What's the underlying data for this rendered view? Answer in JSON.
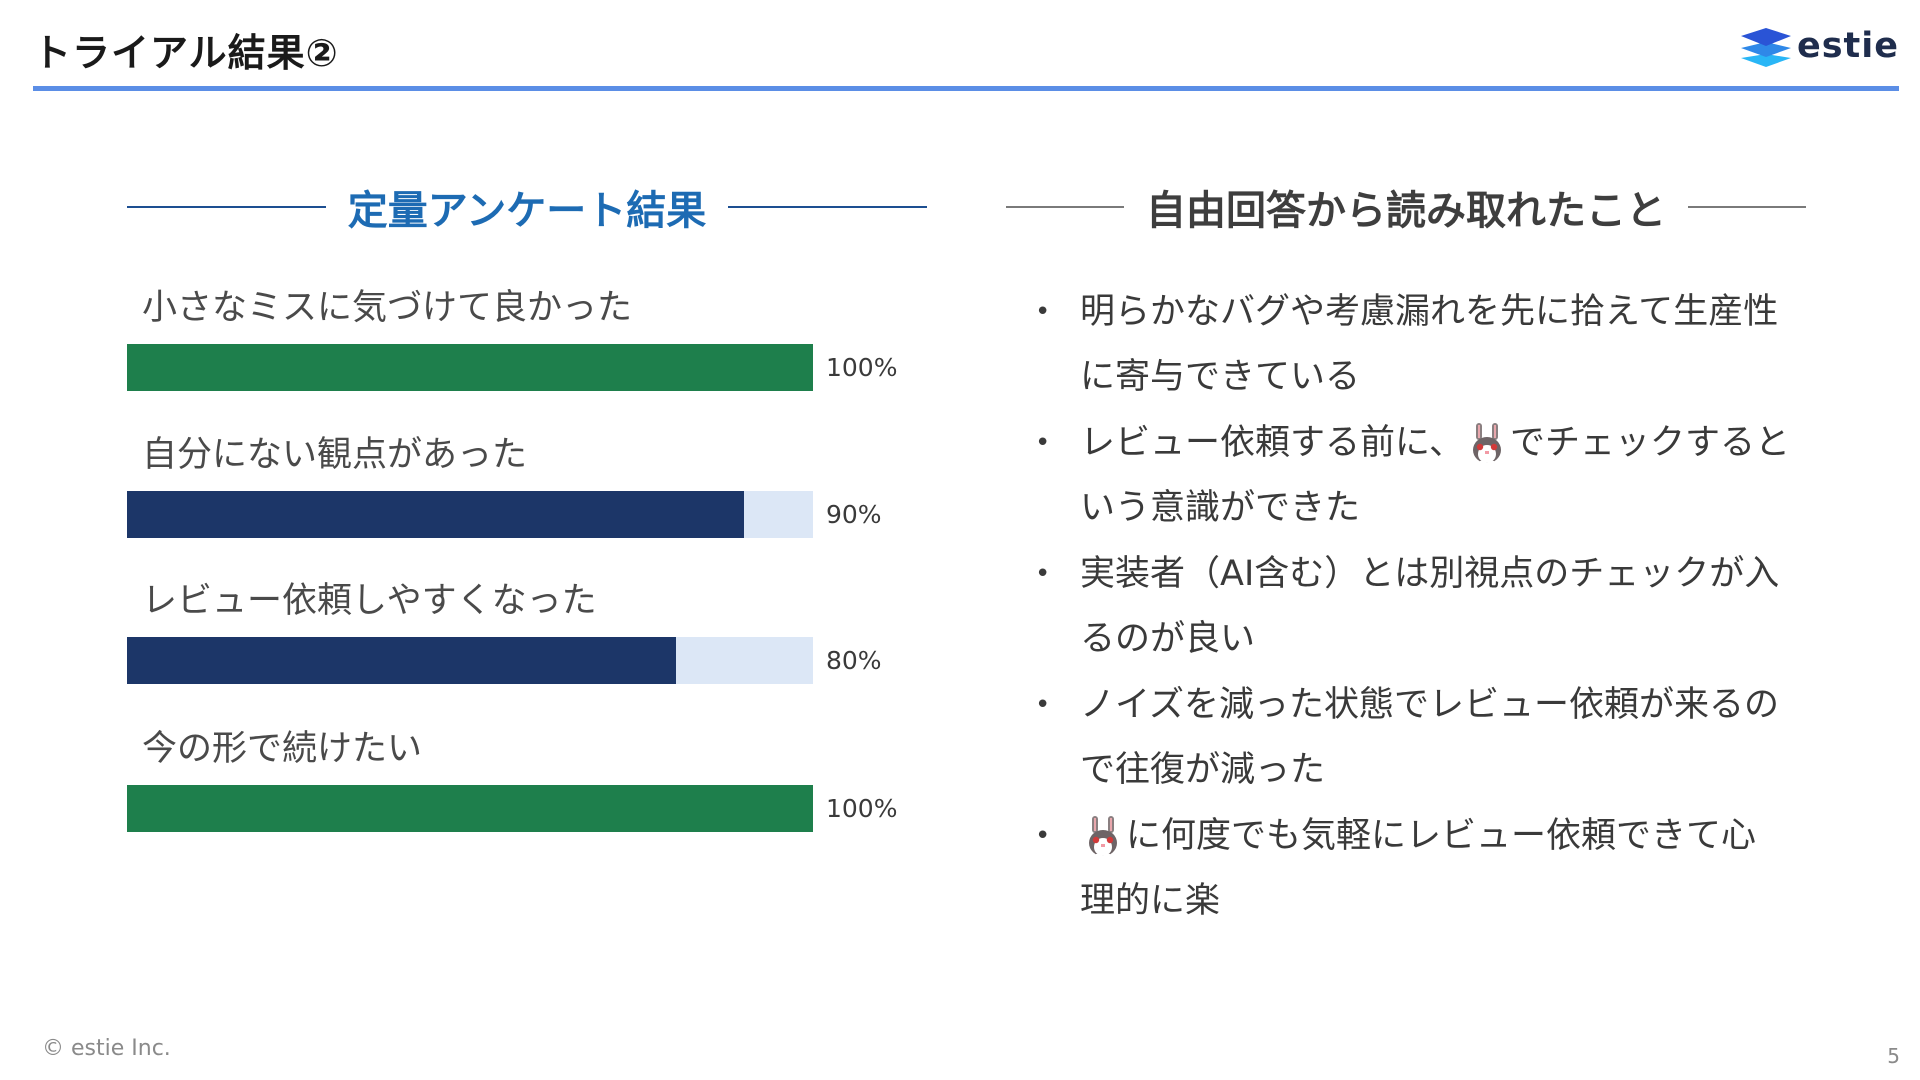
{
  "slide": {
    "title": "トライアル結果②",
    "logo_text": "estie",
    "copyright": "© estie Inc.",
    "page_number": "5"
  },
  "left": {
    "heading": "定量アンケート結果",
    "items": [
      {
        "label": "小さなミスに気づけて良かった",
        "value_text": "100%",
        "value": 100,
        "color": "#1e7f4c"
      },
      {
        "label": "自分にない観点があった",
        "value_text": "90%",
        "value": 90,
        "color": "#1c3668"
      },
      {
        "label": "レビュー依頼しやすくなった",
        "value_text": "80%",
        "value": 80,
        "color": "#1c3668"
      },
      {
        "label": "今の形で続けたい",
        "value_text": "100%",
        "value": 100,
        "color": "#1e7f4c"
      }
    ]
  },
  "right": {
    "heading": "自由回答から読み取れたこと",
    "bullets": [
      {
        "pre": "明らかなバグや考慮漏れを先に拾えて生産性に寄与できている"
      },
      {
        "pre": "レビュー依頼する前に、",
        "icon": "rabbit-icon",
        "post": "でチェックするという意識ができた"
      },
      {
        "pre": "実装者（AI含む）とは別視点のチェックが入るのが良い"
      },
      {
        "pre": "ノイズを減った状態でレビュー依頼が来るので往復が減った"
      },
      {
        "pre": "",
        "icon": "rabbit-icon",
        "post": "に何度でも気軽にレビュー依頼できて心理的に楽"
      }
    ]
  },
  "colors": {
    "accent_rule": "#5b8ee6",
    "heading_blue": "#1d6bb3",
    "bar_track": "#dce7f6",
    "bar_green": "#1e7f4c",
    "bar_navy": "#1c3668"
  }
}
